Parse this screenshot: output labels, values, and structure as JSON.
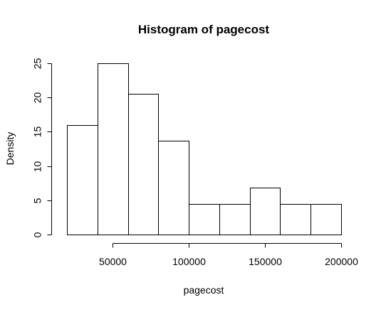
{
  "chart_data": {
    "type": "bar",
    "title": "Histogram of pagecost",
    "xlabel": "pagecost",
    "ylabel": "Density",
    "bin_edges": [
      20000,
      40000,
      60000,
      80000,
      100000,
      120000,
      140000,
      160000,
      180000,
      200000
    ],
    "values": [
      16,
      25,
      20.5,
      13.7,
      4.5,
      4.5,
      6.8,
      4.5,
      4.5
    ],
    "xlim": [
      20000,
      200000
    ],
    "ylim": [
      0,
      25
    ],
    "x_ticks": [
      50000,
      100000,
      150000,
      200000
    ],
    "x_tick_labels": [
      "50000",
      "100000",
      "150000",
      "200000"
    ],
    "y_ticks": [
      0,
      5,
      10,
      15,
      20,
      25
    ],
    "y_tick_labels": [
      "0",
      "5",
      "10",
      "15",
      "20",
      "25"
    ],
    "grid": false,
    "bar_fill": "#ffffff",
    "bar_stroke": "#000000"
  }
}
